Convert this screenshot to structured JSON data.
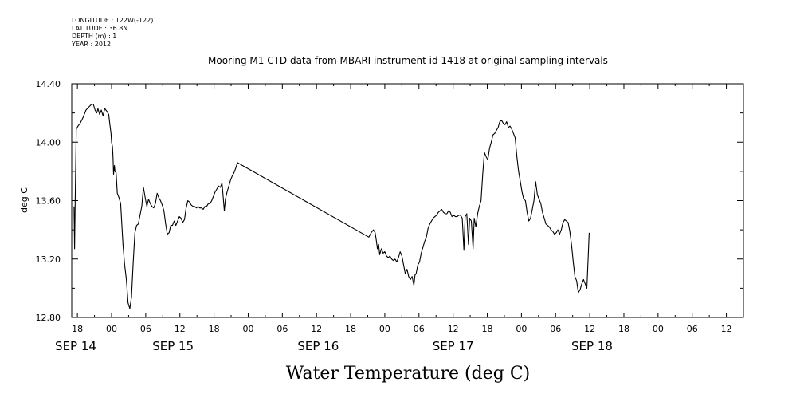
{
  "meta": {
    "longitude": "LONGITUDE : 122W(-122)",
    "latitude": "LATITUDE : 36.8N",
    "depth": "DEPTH (m) : 1",
    "year": "YEAR : 2012"
  },
  "chart_data": {
    "type": "line",
    "title": "Mooring M1 CTD data from MBARI instrument id 1418 at original sampling intervals",
    "xlabel": "Water Temperature (deg C)",
    "ylabel": "deg C",
    "ylim": [
      12.8,
      14.4
    ],
    "xlim_hours": [
      -7,
      111
    ],
    "yticks": [
      "14.40",
      "14.00",
      "13.60",
      "13.20",
      "12.80"
    ],
    "ytick_values": [
      14.4,
      14.0,
      13.6,
      13.2,
      12.8
    ],
    "hour_ticks": [
      {
        "h": -6,
        "label": "18"
      },
      {
        "h": 0,
        "label": "00"
      },
      {
        "h": 6,
        "label": "06"
      },
      {
        "h": 12,
        "label": "12"
      },
      {
        "h": 18,
        "label": "18"
      },
      {
        "h": 24,
        "label": "00"
      },
      {
        "h": 30,
        "label": "06"
      },
      {
        "h": 36,
        "label": "12"
      },
      {
        "h": 42,
        "label": "18"
      },
      {
        "h": 48,
        "label": "00"
      },
      {
        "h": 54,
        "label": "06"
      },
      {
        "h": 60,
        "label": "12"
      },
      {
        "h": 66,
        "label": "18"
      },
      {
        "h": 72,
        "label": "00"
      },
      {
        "h": 78,
        "label": "06"
      },
      {
        "h": 84,
        "label": "12"
      },
      {
        "h": 90,
        "label": "18"
      },
      {
        "h": 96,
        "label": "00"
      },
      {
        "h": 102,
        "label": "06"
      },
      {
        "h": 108,
        "label": "12"
      }
    ],
    "date_labels": [
      {
        "h": -6.3,
        "label": "SEP 14"
      },
      {
        "h": 10.8,
        "label": "SEP 15"
      },
      {
        "h": 36.3,
        "label": "SEP 16"
      },
      {
        "h": 60,
        "label": "SEP 17"
      },
      {
        "h": 84.4,
        "label": "SEP 18"
      }
    ],
    "series": [
      {
        "points": [
          [
            -6.6,
            13.56
          ],
          [
            -6.5,
            13.27
          ],
          [
            -6.4,
            13.58
          ],
          [
            -6.2,
            14.09
          ],
          [
            -5.9,
            14.11
          ],
          [
            -5.5,
            14.13
          ],
          [
            -5.0,
            14.17
          ],
          [
            -4.5,
            14.22
          ],
          [
            -4.0,
            14.24
          ],
          [
            -3.5,
            14.26
          ],
          [
            -3.2,
            14.26
          ],
          [
            -2.9,
            14.22
          ],
          [
            -2.6,
            14.2
          ],
          [
            -2.4,
            14.23
          ],
          [
            -2.1,
            14.19
          ],
          [
            -1.8,
            14.22
          ],
          [
            -1.5,
            14.18
          ],
          [
            -1.2,
            14.23
          ],
          [
            -0.8,
            14.21
          ],
          [
            -0.5,
            14.19
          ],
          [
            -0.3,
            14.12
          ],
          [
            -0.1,
            14.06
          ],
          [
            0.0,
            14.0
          ],
          [
            0.15,
            13.97
          ],
          [
            0.25,
            13.9
          ],
          [
            0.35,
            13.78
          ],
          [
            0.5,
            13.84
          ],
          [
            0.6,
            13.8
          ],
          [
            0.8,
            13.79
          ],
          [
            1.0,
            13.65
          ],
          [
            1.3,
            13.62
          ],
          [
            1.6,
            13.58
          ],
          [
            2.0,
            13.3
          ],
          [
            2.3,
            13.16
          ],
          [
            2.6,
            13.06
          ],
          [
            2.9,
            12.9
          ],
          [
            3.2,
            12.86
          ],
          [
            3.5,
            12.94
          ],
          [
            3.8,
            13.18
          ],
          [
            4.1,
            13.38
          ],
          [
            4.4,
            13.43
          ],
          [
            4.7,
            13.44
          ],
          [
            5.0,
            13.5
          ],
          [
            5.3,
            13.56
          ],
          [
            5.6,
            13.69
          ],
          [
            5.9,
            13.62
          ],
          [
            6.2,
            13.56
          ],
          [
            6.5,
            13.61
          ],
          [
            6.8,
            13.58
          ],
          [
            7.1,
            13.56
          ],
          [
            7.4,
            13.55
          ],
          [
            7.7,
            13.58
          ],
          [
            8.0,
            13.65
          ],
          [
            8.3,
            13.62
          ],
          [
            8.6,
            13.6
          ],
          [
            8.9,
            13.57
          ],
          [
            9.2,
            13.53
          ],
          [
            9.5,
            13.44
          ],
          [
            9.8,
            13.37
          ],
          [
            10.1,
            13.38
          ],
          [
            10.4,
            13.43
          ],
          [
            10.7,
            13.43
          ],
          [
            11.0,
            13.46
          ],
          [
            11.3,
            13.43
          ],
          [
            11.6,
            13.46
          ],
          [
            11.9,
            13.49
          ],
          [
            12.2,
            13.48
          ],
          [
            12.5,
            13.45
          ],
          [
            12.8,
            13.47
          ],
          [
            13.1,
            13.55
          ],
          [
            13.4,
            13.6
          ],
          [
            13.7,
            13.59
          ],
          [
            14.0,
            13.57
          ],
          [
            14.3,
            13.56
          ],
          [
            14.6,
            13.56
          ],
          [
            14.9,
            13.55
          ],
          [
            15.2,
            13.56
          ],
          [
            15.5,
            13.55
          ],
          [
            15.8,
            13.55
          ],
          [
            16.1,
            13.54
          ],
          [
            16.4,
            13.56
          ],
          [
            16.7,
            13.56
          ],
          [
            17.0,
            13.58
          ],
          [
            17.3,
            13.58
          ],
          [
            17.6,
            13.6
          ],
          [
            17.9,
            13.63
          ],
          [
            18.2,
            13.66
          ],
          [
            18.5,
            13.68
          ],
          [
            18.8,
            13.7
          ],
          [
            19.1,
            13.69
          ],
          [
            19.4,
            13.72
          ],
          [
            19.6,
            13.63
          ],
          [
            19.8,
            13.53
          ],
          [
            20.0,
            13.61
          ],
          [
            20.3,
            13.66
          ],
          [
            20.6,
            13.7
          ],
          [
            20.9,
            13.74
          ],
          [
            21.2,
            13.77
          ],
          [
            21.5,
            13.79
          ],
          [
            21.8,
            13.82
          ],
          [
            22.1,
            13.86
          ],
          [
            45.2,
            13.35
          ],
          [
            45.6,
            13.38
          ],
          [
            46.0,
            13.4
          ],
          [
            46.3,
            13.38
          ],
          [
            46.5,
            13.33
          ],
          [
            46.7,
            13.27
          ],
          [
            46.9,
            13.3
          ],
          [
            47.1,
            13.23
          ],
          [
            47.4,
            13.27
          ],
          [
            47.7,
            13.24
          ],
          [
            48.0,
            13.25
          ],
          [
            48.3,
            13.22
          ],
          [
            48.6,
            13.21
          ],
          [
            48.9,
            13.22
          ],
          [
            49.2,
            13.2
          ],
          [
            49.5,
            13.19
          ],
          [
            49.8,
            13.2
          ],
          [
            50.1,
            13.18
          ],
          [
            50.4,
            13.21
          ],
          [
            50.7,
            13.25
          ],
          [
            51.0,
            13.22
          ],
          [
            51.3,
            13.16
          ],
          [
            51.6,
            13.1
          ],
          [
            51.9,
            13.13
          ],
          [
            52.2,
            13.08
          ],
          [
            52.5,
            13.06
          ],
          [
            52.8,
            13.08
          ],
          [
            53.1,
            13.02
          ],
          [
            53.3,
            13.09
          ],
          [
            53.5,
            13.1
          ],
          [
            53.8,
            13.16
          ],
          [
            54.1,
            13.18
          ],
          [
            54.4,
            13.24
          ],
          [
            54.7,
            13.28
          ],
          [
            55.0,
            13.32
          ],
          [
            55.3,
            13.35
          ],
          [
            55.6,
            13.41
          ],
          [
            55.9,
            13.44
          ],
          [
            56.2,
            13.46
          ],
          [
            56.5,
            13.48
          ],
          [
            56.8,
            13.49
          ],
          [
            57.1,
            13.5
          ],
          [
            57.4,
            13.52
          ],
          [
            57.7,
            13.53
          ],
          [
            58.0,
            13.54
          ],
          [
            58.3,
            13.52
          ],
          [
            58.6,
            13.51
          ],
          [
            58.9,
            13.51
          ],
          [
            59.2,
            13.53
          ],
          [
            59.5,
            13.52
          ],
          [
            59.8,
            13.49
          ],
          [
            60.1,
            13.5
          ],
          [
            60.4,
            13.49
          ],
          [
            60.7,
            13.49
          ],
          [
            61.0,
            13.5
          ],
          [
            61.3,
            13.5
          ],
          [
            61.6,
            13.48
          ],
          [
            61.9,
            13.26
          ],
          [
            62.1,
            13.49
          ],
          [
            62.4,
            13.51
          ],
          [
            62.7,
            13.3
          ],
          [
            62.9,
            13.48
          ],
          [
            63.2,
            13.46
          ],
          [
            63.5,
            13.27
          ],
          [
            63.7,
            13.48
          ],
          [
            64.0,
            13.42
          ],
          [
            64.3,
            13.51
          ],
          [
            64.6,
            13.56
          ],
          [
            64.9,
            13.6
          ],
          [
            65.2,
            13.78
          ],
          [
            65.5,
            13.93
          ],
          [
            65.8,
            13.9
          ],
          [
            66.1,
            13.88
          ],
          [
            66.4,
            13.96
          ],
          [
            66.7,
            14.0
          ],
          [
            67.0,
            14.05
          ],
          [
            67.3,
            14.06
          ],
          [
            67.6,
            14.08
          ],
          [
            67.9,
            14.1
          ],
          [
            68.2,
            14.14
          ],
          [
            68.5,
            14.15
          ],
          [
            68.8,
            14.13
          ],
          [
            69.1,
            14.12
          ],
          [
            69.4,
            14.14
          ],
          [
            69.7,
            14.1
          ],
          [
            70.0,
            14.11
          ],
          [
            70.3,
            14.09
          ],
          [
            70.6,
            14.06
          ],
          [
            70.9,
            14.03
          ],
          [
            71.2,
            13.9
          ],
          [
            71.5,
            13.8
          ],
          [
            71.8,
            13.73
          ],
          [
            72.1,
            13.66
          ],
          [
            72.4,
            13.61
          ],
          [
            72.7,
            13.6
          ],
          [
            73.0,
            13.52
          ],
          [
            73.3,
            13.46
          ],
          [
            73.6,
            13.48
          ],
          [
            73.9,
            13.54
          ],
          [
            74.2,
            13.6
          ],
          [
            74.5,
            13.73
          ],
          [
            74.8,
            13.64
          ],
          [
            75.1,
            13.61
          ],
          [
            75.4,
            13.58
          ],
          [
            75.7,
            13.52
          ],
          [
            76.0,
            13.48
          ],
          [
            76.3,
            13.44
          ],
          [
            76.6,
            13.43
          ],
          [
            76.9,
            13.42
          ],
          [
            77.2,
            13.4
          ],
          [
            77.5,
            13.39
          ],
          [
            77.8,
            13.37
          ],
          [
            78.1,
            13.38
          ],
          [
            78.4,
            13.4
          ],
          [
            78.7,
            13.37
          ],
          [
            79.0,
            13.4
          ],
          [
            79.3,
            13.45
          ],
          [
            79.6,
            13.47
          ],
          [
            79.9,
            13.46
          ],
          [
            80.2,
            13.45
          ],
          [
            80.5,
            13.39
          ],
          [
            80.8,
            13.3
          ],
          [
            81.1,
            13.18
          ],
          [
            81.4,
            13.08
          ],
          [
            81.7,
            13.05
          ],
          [
            82.0,
            12.97
          ],
          [
            82.3,
            12.99
          ],
          [
            82.6,
            13.03
          ],
          [
            82.9,
            13.06
          ],
          [
            83.2,
            13.03
          ],
          [
            83.5,
            13.0
          ],
          [
            83.7,
            13.19
          ],
          [
            83.9,
            13.38
          ]
        ]
      }
    ]
  }
}
